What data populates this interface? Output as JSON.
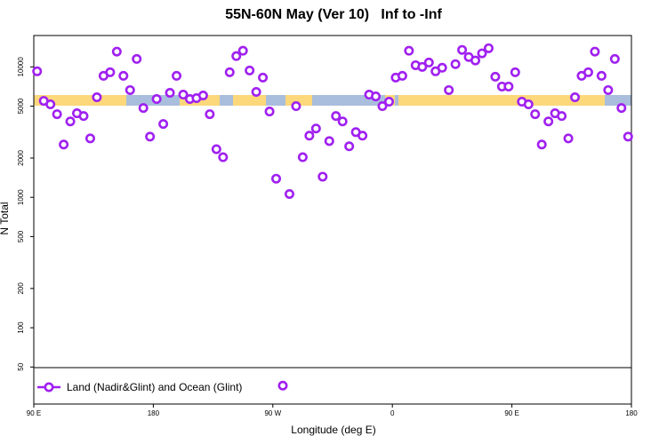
{
  "chart_data": {
    "type": "scatter",
    "title": "55N-60N May (Ver 10)   Inf to -Inf",
    "xlabel": "Longitude (deg E)",
    "ylabel": "N Total",
    "log_y": true,
    "legend": "bottom-left",
    "xlim": [
      90,
      540
    ],
    "ylim": [
      26,
      17400
    ],
    "xticks": [
      {
        "value": 90,
        "label": "90 E"
      },
      {
        "value": 180,
        "label": "180"
      },
      {
        "value": 270,
        "label": "90 W"
      },
      {
        "value": 360,
        "label": "0"
      },
      {
        "value": 450,
        "label": "90 E"
      },
      {
        "value": 540,
        "label": "180"
      }
    ],
    "yticks": [
      50,
      100,
      200,
      500,
      1000,
      2000,
      5000,
      10000
    ],
    "series": [
      {
        "name": "Land (Nadir&Glint) and Ocean (Glint)",
        "color": "#a020f0",
        "x": [
          92.5,
          97.5,
          102.5,
          107.5,
          112.5,
          117.5,
          122.5,
          127.5,
          132.5,
          137.5,
          142.5,
          147.5,
          152.5,
          157.5,
          162.5,
          167.5,
          172.5,
          177.5,
          182.5,
          187.5,
          192.5,
          197.5,
          202.5,
          207.5,
          212.5,
          217.5,
          222.5,
          227.5,
          232.5,
          237.5,
          242.5,
          247.5,
          252.5,
          257.5,
          262.5,
          267.5,
          272.5,
          277.5,
          282.5,
          287.5,
          292.5,
          297.5,
          302.5,
          307.5,
          312.5,
          317.5,
          322.5,
          327.5,
          332.5,
          337.5,
          342.5,
          347.5,
          352.5,
          357.5,
          362.5,
          367.5,
          372.5,
          377.5,
          382.5,
          387.5,
          392.5,
          397.5,
          402.5,
          407.5,
          412.5,
          417.5,
          422.5,
          427.5,
          432.5,
          437.5,
          442.5,
          447.5,
          452.5,
          457.5,
          462.5,
          467.5,
          472.5,
          477.5,
          482.5,
          487.5,
          492.5,
          497.5,
          502.5,
          507.5,
          512.5,
          517.5,
          522.5,
          527.5,
          532.5,
          537.5
        ],
        "values": [
          9250,
          5490,
          5160,
          4340,
          2540,
          3820,
          4410,
          4200,
          2830,
          5850,
          8540,
          9100,
          13100,
          8540,
          6640,
          11500,
          4840,
          2920,
          5670,
          3650,
          6330,
          8540,
          6130,
          5670,
          5760,
          6040,
          4340,
          2340,
          2030,
          9100,
          12100,
          13300,
          9390,
          6430,
          8280,
          4550,
          1390,
          36,
          1060,
          5000,
          2030,
          2970,
          3370,
          1440,
          2700,
          4200,
          3820,
          2460,
          3160,
          2970,
          6130,
          5940,
          5000,
          5410,
          8280,
          8540,
          13300,
          10300,
          10000,
          10800,
          9250,
          9850,
          6640,
          10500,
          13500,
          11900,
          11200,
          12700,
          13900,
          8410,
          7070,
          7070,
          9100,
          5410,
          5160,
          4340,
          2540,
          3820,
          4410,
          4200,
          2830,
          5850,
          8540,
          9100,
          13100,
          8540,
          6640,
          11500,
          4840,
          2920
        ]
      }
    ]
  }
}
